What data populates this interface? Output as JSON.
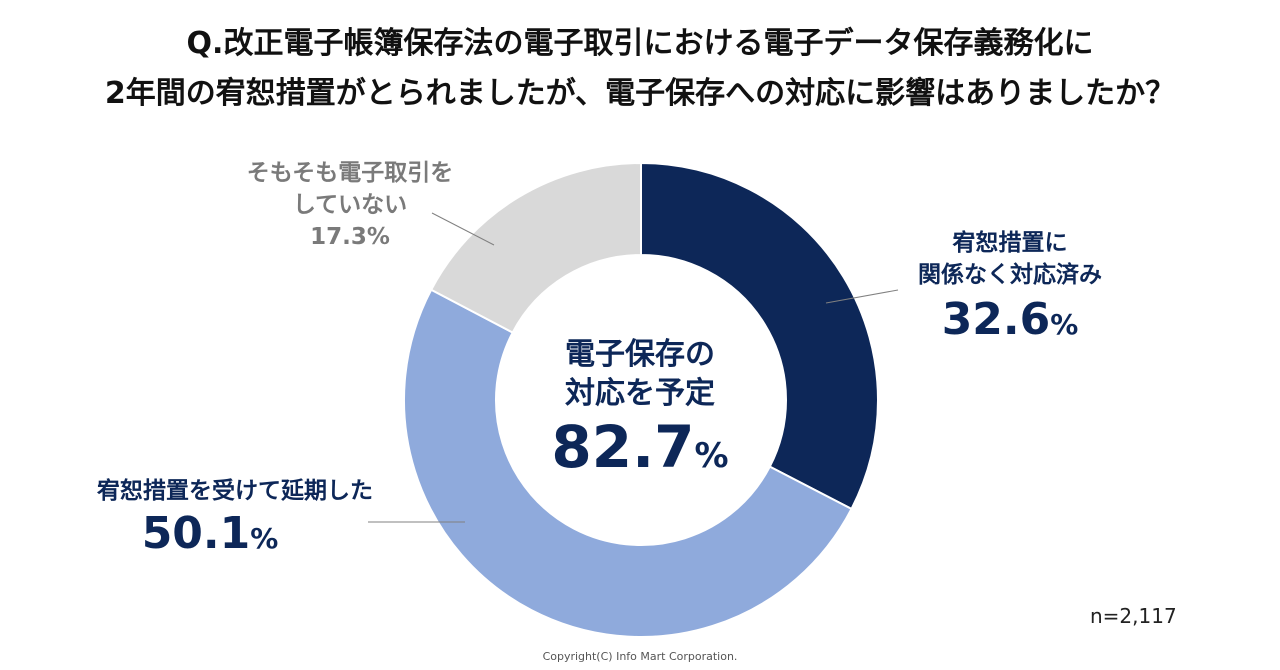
{
  "title": {
    "line1": "Q.改正電子帳簿保存法の電子取引における電子データ保存義務化に",
    "line2": "2年間の宥恕措置がとられましたが、電子保存への対応に影響はありましたか？"
  },
  "center": {
    "line1": "電子保存の",
    "line2": "対応を予定",
    "value": "82.7",
    "unit": "%"
  },
  "labels": {
    "done": {
      "line1": "宥恕措置に",
      "line2": "関係なく対応済み",
      "value": "32.6",
      "unit": "%"
    },
    "postponed": {
      "line1": "宥恕措置を受けて延期した",
      "value": "50.1",
      "unit": "%"
    },
    "none": {
      "line1": "そもそも電子取引を",
      "line2": "していない",
      "value": "17.3%"
    }
  },
  "sample_size": "n=2,117",
  "copyright": "Copyright(C) Info Mart Corporation.",
  "chart_data": {
    "type": "pie",
    "donut": true,
    "title": "Q.改正電子帳簿保存法の電子取引における電子データ保存義務化に2年間の宥恕措置がとられましたが、電子保存への対応に影響はありましたか？",
    "categories": [
      "宥恕措置に関係なく対応済み",
      "宥恕措置を受けて延期した",
      "そもそも電子取引をしていない"
    ],
    "values": [
      32.6,
      50.1,
      17.3
    ],
    "colors": [
      "#0d2758",
      "#8faadc",
      "#d9d9d9"
    ],
    "center_annotation": "電子保存の対応を予定 82.7%",
    "n": "n=2,117"
  }
}
